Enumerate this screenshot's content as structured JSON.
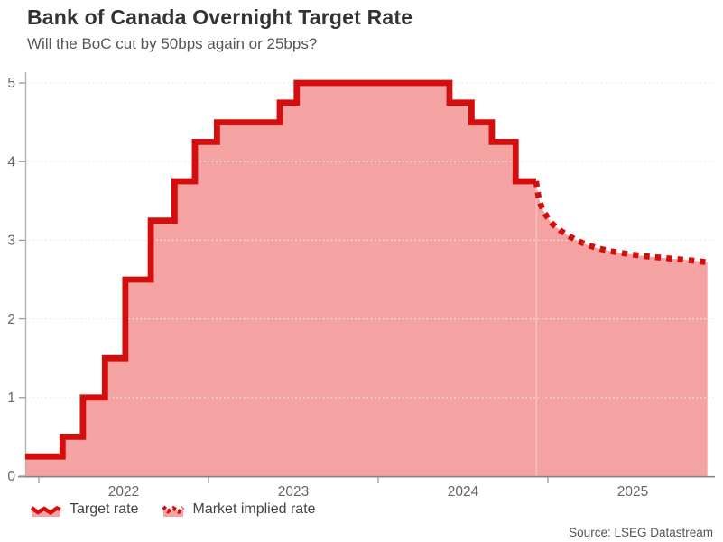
{
  "header": {
    "title": "Bank of Canada Overnight Target Rate",
    "subtitle": "Will the BoC cut by 50bps again or 25bps?"
  },
  "legend": {
    "items": [
      {
        "label": "Target rate",
        "style": "solid"
      },
      {
        "label": "Market implied rate",
        "style": "dotted"
      }
    ]
  },
  "source_note": "Source: LSEG Datastream",
  "colors": {
    "line_red": "#d40d0d",
    "area_pink": "#f5a2a2",
    "grid": "#e9e9e9",
    "y_axis": "#b3b3b3",
    "x_axis": "#858585",
    "tick": "#999999",
    "tick_label": "#666666"
  },
  "chart_data": {
    "type": "area",
    "title": "Bank of Canada Overnight Target Rate",
    "subtitle": "Will the BoC cut by 50bps again or 25bps?",
    "xlabel": "",
    "ylabel": "",
    "xlim": [
      2021.92,
      2025.97
    ],
    "ylim": [
      0,
      5.1
    ],
    "y_ticks": [
      0,
      1,
      2,
      3,
      4,
      5
    ],
    "x_ticks": [
      2022,
      2023,
      2024,
      2025
    ],
    "x_tick_labels": [
      "2022",
      "2023",
      "2024",
      "2025"
    ],
    "grid": "horizontal-dotted",
    "legend_position": "bottom-left",
    "series": [
      {
        "name": "Target rate",
        "style": "step-solid",
        "points": [
          [
            2021.92,
            0.25
          ],
          [
            2022.14,
            0.5
          ],
          [
            2022.26,
            1.0
          ],
          [
            2022.39,
            1.5
          ],
          [
            2022.51,
            2.5
          ],
          [
            2022.66,
            3.25
          ],
          [
            2022.8,
            3.75
          ],
          [
            2022.92,
            4.25
          ],
          [
            2023.05,
            4.5
          ],
          [
            2023.42,
            4.75
          ],
          [
            2023.52,
            5.0
          ],
          [
            2024.42,
            4.75
          ],
          [
            2024.55,
            4.5
          ],
          [
            2024.67,
            4.25
          ],
          [
            2024.81,
            3.75
          ],
          [
            2024.93,
            3.75
          ]
        ]
      },
      {
        "name": "Market implied rate",
        "style": "dotted",
        "points": [
          [
            2024.93,
            3.75
          ],
          [
            2024.945,
            3.55
          ],
          [
            2024.96,
            3.44
          ],
          [
            2024.98,
            3.35
          ],
          [
            2025.0,
            3.28
          ],
          [
            2025.03,
            3.2
          ],
          [
            2025.07,
            3.13
          ],
          [
            2025.11,
            3.07
          ],
          [
            2025.16,
            3.01
          ],
          [
            2025.22,
            2.95
          ],
          [
            2025.29,
            2.9
          ],
          [
            2025.37,
            2.86
          ],
          [
            2025.46,
            2.83
          ],
          [
            2025.56,
            2.8
          ],
          [
            2025.66,
            2.78
          ],
          [
            2025.76,
            2.76
          ],
          [
            2025.86,
            2.74
          ],
          [
            2025.94,
            2.72
          ]
        ]
      }
    ]
  }
}
